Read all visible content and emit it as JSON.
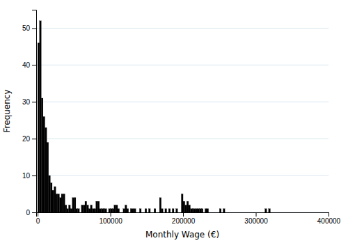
{
  "chart_data": {
    "type": "histogram",
    "xlabel": "Monthly Wage (€)",
    "ylabel": "Frequency",
    "color": "#000000",
    "grid": true,
    "xlim": [
      -2000,
      400000
    ],
    "ylim": [
      0,
      55
    ],
    "xticks": [
      0,
      100000,
      200000,
      300000,
      400000
    ],
    "yticks": [
      0,
      10,
      20,
      30,
      40,
      50
    ],
    "bins": [
      0,
      2500,
      5000,
      7500,
      10000,
      12500,
      15000,
      17500,
      20000,
      22500,
      25000,
      27500,
      30000,
      32500,
      35000,
      37500,
      40000,
      42500,
      45000,
      47500,
      50000,
      52500,
      55000,
      57500,
      60000,
      62500,
      65000,
      67500,
      70000,
      72500,
      75000,
      77500,
      80000,
      82500,
      85000,
      87500,
      90000,
      92500,
      95000,
      97500,
      100000,
      102500,
      105000,
      107500,
      110000,
      112500,
      115000,
      117500,
      120000,
      122500,
      125000,
      127500,
      130000,
      132500,
      135000,
      137500,
      140000,
      142500,
      145000,
      147500,
      150000,
      152500,
      155000,
      157500,
      160000,
      162500,
      165000,
      167500,
      170000,
      172500,
      175000,
      177500,
      180000,
      182500,
      185000,
      187500,
      190000,
      192500,
      195000,
      197500,
      200000,
      202500,
      205000,
      207500,
      210000,
      212500,
      215000,
      217500,
      220000,
      222500,
      225000,
      227500,
      230000,
      232500,
      235000,
      237500,
      240000,
      242500,
      245000,
      247500,
      250000,
      252500,
      255000,
      257500,
      260000,
      262500,
      265000,
      267500,
      270000,
      272500,
      275000,
      277500,
      280000,
      282500,
      285000,
      287500,
      290000,
      292500,
      295000,
      297500,
      300000,
      302500,
      305000,
      307500,
      310000,
      312500,
      315000,
      317500,
      320000,
      322500,
      325000,
      327500,
      330000,
      332500,
      335000,
      337500,
      340000,
      342500,
      345000,
      347500,
      350000,
      352500,
      355000,
      357500,
      360000,
      362500,
      365000,
      367500,
      370000,
      372500,
      375000,
      377500,
      380000,
      382500,
      385000,
      387500,
      390000,
      392500,
      395000,
      397500,
      400000
    ],
    "values": [
      46,
      52,
      31,
      26,
      23,
      19,
      10,
      8,
      6,
      7,
      5,
      5,
      4,
      5,
      5,
      2,
      1,
      2,
      1,
      4,
      4,
      1,
      1,
      0,
      2,
      2,
      3,
      2,
      1,
      2,
      1,
      1,
      3,
      3,
      1,
      1,
      1,
      1,
      0,
      1,
      1,
      1,
      2,
      2,
      1,
      0,
      0,
      1,
      2,
      1,
      0,
      1,
      1,
      1,
      0,
      0,
      1,
      0,
      0,
      1,
      0,
      1,
      0,
      0,
      1,
      0,
      0,
      4,
      1,
      0,
      1,
      0,
      1,
      0,
      1,
      0,
      1,
      0,
      0,
      5,
      3,
      2,
      3,
      2,
      1,
      1,
      1,
      1,
      1,
      1,
      1,
      0,
      1,
      1,
      0,
      0,
      0,
      0,
      0,
      0,
      1,
      0,
      1,
      0,
      0,
      0,
      0,
      0,
      0,
      0,
      0,
      0,
      0,
      0,
      0,
      0,
      0,
      0,
      0,
      0,
      0,
      0,
      0,
      0,
      0,
      1,
      0,
      1,
      0,
      0,
      0,
      0,
      0,
      0,
      0,
      0,
      0,
      0,
      0,
      0,
      0,
      0,
      0,
      0,
      0,
      0,
      0,
      0,
      0,
      0,
      0,
      0,
      0,
      0,
      0,
      0,
      0,
      0,
      0,
      0
    ]
  }
}
